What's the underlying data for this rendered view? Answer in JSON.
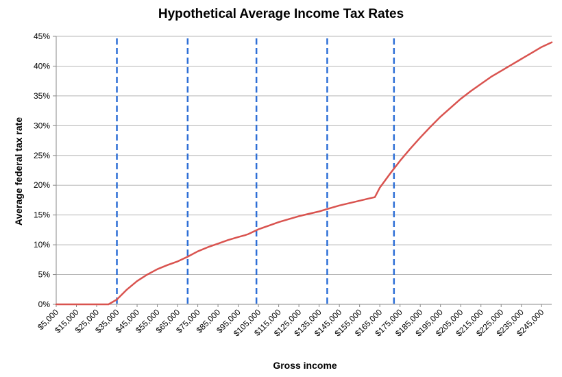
{
  "chart_data": {
    "type": "line",
    "title": "Hypothetical Average Income Tax Rates",
    "xlabel": "Gross income",
    "ylabel": "Average federal tax rate",
    "x_unit": "dollars",
    "xlim": [
      5000,
      250000
    ],
    "ylim": [
      0,
      45
    ],
    "y_ticks": [
      "0%",
      "5%",
      "10%",
      "15%",
      "20%",
      "25%",
      "30%",
      "35%",
      "40%",
      "45%"
    ],
    "x_ticks": [
      "$5,000",
      "$15,000",
      "$25,000",
      "$35,000",
      "$45,000",
      "$55,000",
      "$65,000",
      "$75,000",
      "$85,000",
      "$95,000",
      "$105,000",
      "$115,000",
      "$125,000",
      "$135,000",
      "$145,000",
      "$155,000",
      "$165,000",
      "$175,000",
      "$185,000",
      "$195,000",
      "$205,000",
      "$215,000",
      "$225,000",
      "$235,000",
      "$245,000"
    ],
    "grid": true,
    "legend": "none",
    "series": [
      {
        "color": "#d9534f",
        "x": [
          5000,
          10000,
          15000,
          20000,
          25000,
          30000,
          30870,
          35000,
          40000,
          45000,
          50000,
          55000,
          60000,
          65000,
          65000,
          70000,
          75000,
          80000,
          85000,
          90000,
          95000,
          98280,
          100000,
          105000,
          110000,
          115000,
          120000,
          125000,
          130000,
          135000,
          140000,
          145000,
          150000,
          155000,
          160000,
          162570,
          165000,
          170000,
          175000,
          180000,
          185000,
          190000,
          195000,
          200000,
          205000,
          210000,
          215000,
          220000,
          225000,
          230000,
          235000,
          240000,
          245000,
          250000
        ],
        "y": [
          0,
          0,
          0,
          0,
          0,
          0,
          0,
          0.8,
          2.5,
          3.9,
          5.0,
          5.9,
          6.6,
          7.2,
          7.2,
          8.0,
          8.9,
          9.6,
          10.2,
          10.8,
          11.3,
          11.6,
          11.8,
          12.6,
          13.2,
          13.8,
          14.3,
          14.8,
          15.2,
          15.6,
          16.1,
          16.6,
          17.0,
          17.4,
          17.8,
          18.0,
          19.6,
          21.9,
          24.1,
          26.1,
          28.0,
          29.8,
          31.5,
          33.0,
          34.5,
          35.8,
          37.0,
          38.2,
          39.2,
          40.2,
          41.2,
          42.2,
          43.2,
          44.0
        ]
      }
    ],
    "vlines": {
      "color": "#2e6fd6",
      "style": "dashed",
      "x": [
        35000,
        70000,
        104000,
        139000,
        172000
      ]
    }
  }
}
